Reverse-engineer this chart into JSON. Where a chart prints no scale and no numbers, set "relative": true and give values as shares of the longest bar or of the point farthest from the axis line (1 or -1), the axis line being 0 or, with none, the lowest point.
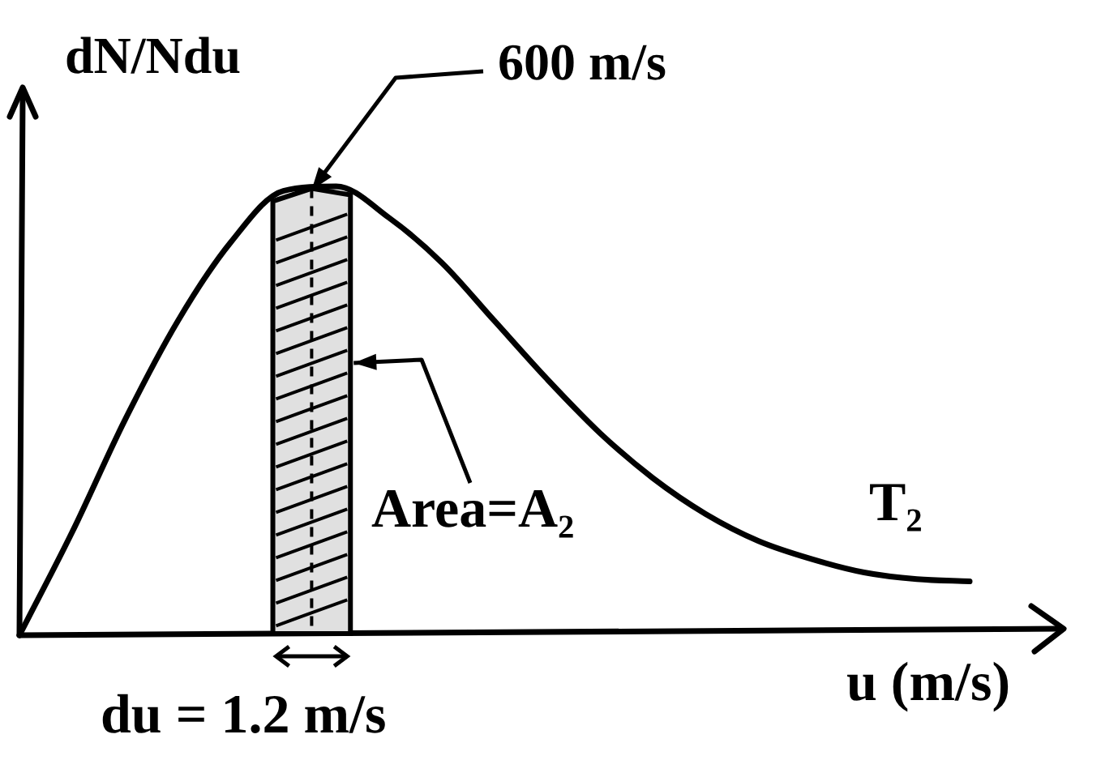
{
  "chart_data": {
    "type": "line",
    "relative": true,
    "ylabel": "dN/Ndu",
    "xlabel": "u (m/s)",
    "categories": [
      null,
      null,
      null,
      null,
      null,
      null,
      null,
      null,
      null,
      null,
      null,
      null,
      null,
      null,
      null,
      null,
      null,
      null,
      null
    ],
    "series": [
      {
        "name": "T₂",
        "color": "#000000",
        "values": [
          0,
          0.23,
          0.48,
          0.7,
          0.875,
          0.99,
          1,
          0.93,
          0.83,
          0.7,
          0.57,
          0.45,
          0.35,
          0.27,
          0.21,
          0.17,
          0.14,
          0.125,
          0.12
        ]
      }
    ],
    "annotations": [
      "600 m/s",
      "Area=A₂",
      "du = 1.2 m/s"
    ],
    "marker": "none",
    "line_style": "solid",
    "legend": false
  }
}
